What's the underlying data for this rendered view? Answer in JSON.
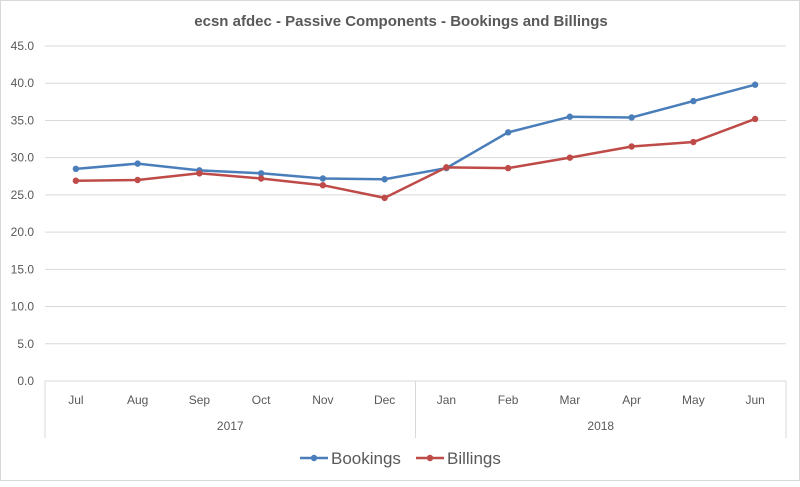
{
  "chart_data": {
    "type": "line",
    "title": "ecsn afdec - Passive Components - Bookings and Billings",
    "categories": [
      "Jul",
      "Aug",
      "Sep",
      "Oct",
      "Nov",
      "Dec",
      "Jan",
      "Feb",
      "Mar",
      "Apr",
      "May",
      "Jun"
    ],
    "year_groups": [
      {
        "label": "2017",
        "count": 6
      },
      {
        "label": "2018",
        "count": 6
      }
    ],
    "ylim": [
      0,
      45
    ],
    "yticks": [
      "0.0",
      "5.0",
      "10.0",
      "15.0",
      "20.0",
      "25.0",
      "30.0",
      "35.0",
      "40.0",
      "45.0"
    ],
    "grid": true,
    "legend_position": "bottom",
    "series": [
      {
        "name": "Bookings",
        "color": "#4a7ebb",
        "values": [
          28.5,
          29.2,
          28.3,
          27.9,
          27.2,
          27.1,
          28.6,
          33.4,
          35.5,
          35.4,
          37.6,
          39.8
        ]
      },
      {
        "name": "Billings",
        "color": "#be4b48",
        "values": [
          26.9,
          27.0,
          27.9,
          27.2,
          26.3,
          24.6,
          28.7,
          28.6,
          30.0,
          31.5,
          32.1,
          35.2
        ]
      }
    ]
  }
}
